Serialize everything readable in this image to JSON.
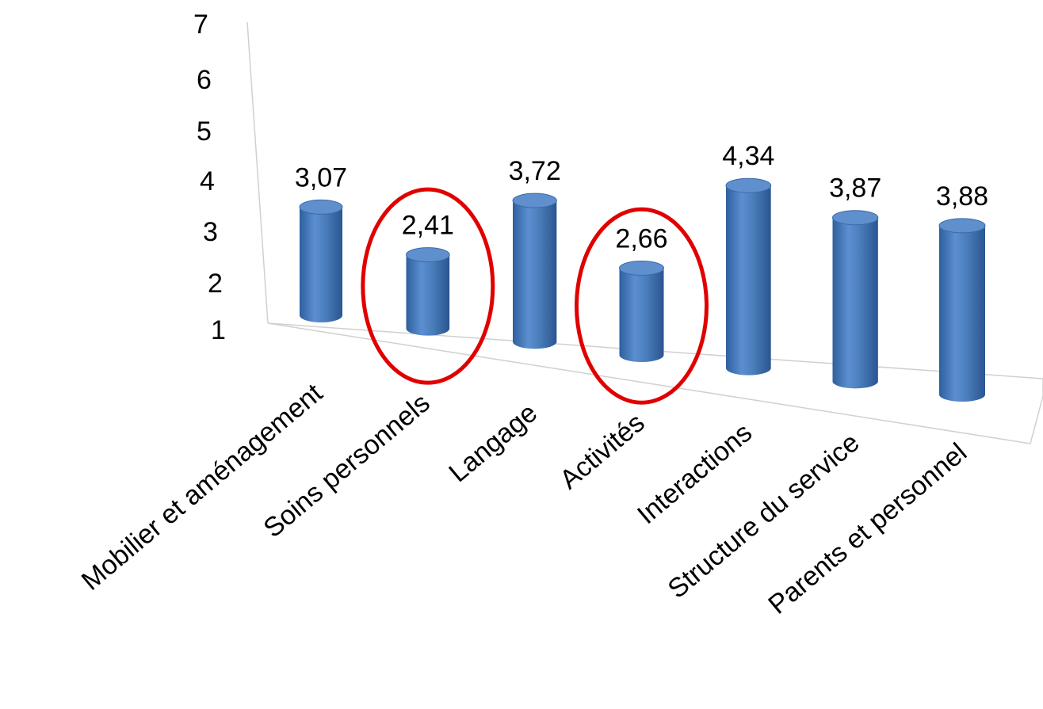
{
  "chart_data": {
    "type": "bar",
    "style": "3d-cylinder",
    "categories": [
      "Mobilier et aménagement",
      "Soins personnels",
      "Langage",
      "Activités",
      "Interactions",
      "Structure du service",
      "Parents et personnel"
    ],
    "values": [
      3.07,
      2.41,
      3.72,
      2.66,
      4.34,
      3.87,
      3.88
    ],
    "data_labels": [
      "3,07",
      "2,41",
      "3,72",
      "2,66",
      "4,34",
      "3,87",
      "3,88"
    ],
    "yticks": [
      "1",
      "2",
      "3",
      "4",
      "5",
      "6",
      "7"
    ],
    "ylim": [
      1,
      7
    ],
    "title": "",
    "xlabel": "",
    "ylabel": "",
    "grid": false,
    "legend": "none",
    "bar_color": "#4a7ebb",
    "highlighted_categories": [
      "Soins personnels",
      "Activités"
    ],
    "highlight_color": "#e00000"
  }
}
